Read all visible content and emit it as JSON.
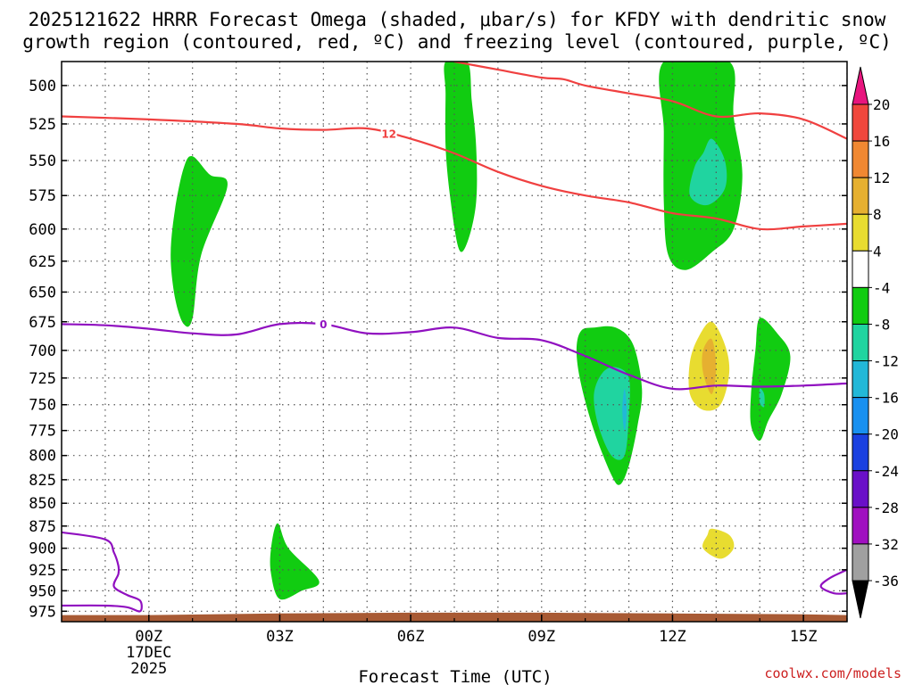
{
  "title_line1": "2025121622 HRRR Forecast Omega (shaded, μbar/s) for KFDY with dendritic snow",
  "title_line2": "growth region (contoured, red, ºC) and freezing level (contoured, purple, ºC)",
  "credit": "coolwx.com/models",
  "chart_data": {
    "type": "time-height contour",
    "title": "2025121622 HRRR Forecast Omega (shaded, μbar/s) for KFDY with dendritic snow growth region (contoured, red, ºC) and freezing level (contoured, purple, ºC)",
    "xlabel": "Forecast Time (UTC)",
    "ylabel": "Pressure (hPa)",
    "xlim_hours_from_00Z": [
      -2,
      16
    ],
    "ylim_hpa": [
      988,
      485
    ],
    "x_ticks": [
      {
        "hour": 0,
        "label": "00Z",
        "sub1": "17DEC",
        "sub2": "2025"
      },
      {
        "hour": 3,
        "label": "03Z"
      },
      {
        "hour": 6,
        "label": "06Z"
      },
      {
        "hour": 9,
        "label": "09Z"
      },
      {
        "hour": 12,
        "label": "12Z"
      },
      {
        "hour": 15,
        "label": "15Z"
      }
    ],
    "y_ticks": [
      500,
      525,
      550,
      575,
      600,
      625,
      650,
      675,
      700,
      725,
      750,
      775,
      800,
      825,
      850,
      875,
      900,
      925,
      950,
      975
    ],
    "colorbar": {
      "units": "μbar/s",
      "levels": [
        20,
        16,
        12,
        8,
        4,
        -4,
        -8,
        -12,
        -16,
        -20,
        -24,
        -28,
        -32,
        -36
      ],
      "colors": [
        "#e8157e",
        "#f0473c",
        "#f08832",
        "#e6b030",
        "#e8dc30",
        "#ffffff",
        "#11cc11",
        "#20d4a0",
        "#22b8d8",
        "#1890f0",
        "#1a40e0",
        "#6a10c8",
        "#a010c0",
        "#a0a0a0",
        "#000000"
      ]
    },
    "contours": [
      {
        "name": "dendritic-12C",
        "color": "#f04040",
        "label": "12",
        "points": [
          [
            -2,
            520
          ],
          [
            0,
            522
          ],
          [
            2,
            525
          ],
          [
            3,
            528
          ],
          [
            4,
            529
          ],
          [
            5,
            528
          ],
          [
            6,
            535
          ],
          [
            7,
            545
          ],
          [
            8,
            558
          ],
          [
            9,
            568
          ],
          [
            10,
            575
          ],
          [
            11,
            580
          ],
          [
            12,
            588
          ],
          [
            13,
            592
          ],
          [
            14,
            600
          ],
          [
            15,
            598
          ],
          [
            16,
            596
          ]
        ]
      },
      {
        "name": "dendritic-upper",
        "color": "#f04040",
        "label": "",
        "points": [
          [
            7,
            485
          ],
          [
            8,
            490
          ],
          [
            9,
            495
          ],
          [
            9.5,
            496
          ],
          [
            10,
            500
          ],
          [
            11,
            505
          ],
          [
            12,
            510
          ],
          [
            13,
            520
          ],
          [
            14,
            518
          ],
          [
            15,
            522
          ],
          [
            16,
            535
          ]
        ]
      },
      {
        "name": "freezing-0C",
        "color": "#9010c0",
        "label": "0",
        "points": [
          [
            -2,
            677
          ],
          [
            -1,
            678
          ],
          [
            0,
            681
          ],
          [
            1,
            685
          ],
          [
            2,
            686
          ],
          [
            3,
            677
          ],
          [
            4,
            677
          ],
          [
            5,
            685
          ],
          [
            6,
            684
          ],
          [
            7,
            680
          ],
          [
            8,
            689
          ],
          [
            9,
            691
          ],
          [
            10,
            705
          ],
          [
            11,
            722
          ],
          [
            12,
            735
          ],
          [
            13,
            732
          ],
          [
            14,
            733
          ],
          [
            15,
            732
          ],
          [
            16,
            730
          ]
        ]
      }
    ],
    "shaded_regions": [
      {
        "name": "omega-pos4-a",
        "level": 4,
        "points": [
          [
            -1.3,
            485
          ],
          [
            -0.7,
            485
          ],
          [
            -0.8,
            530
          ],
          [
            -1.0,
            570
          ],
          [
            -1.2,
            530
          ]
        ]
      },
      {
        "name": "omega-neg4-a",
        "level": -4,
        "points": [
          [
            1.0,
            547
          ],
          [
            1.4,
            560
          ],
          [
            1.8,
            568
          ],
          [
            1.2,
            620
          ],
          [
            1.0,
            672
          ],
          [
            0.8,
            677
          ],
          [
            0.6,
            655
          ],
          [
            0.5,
            620
          ],
          [
            0.6,
            585
          ],
          [
            0.8,
            555
          ]
        ]
      },
      {
        "name": "omega-neg4-b",
        "level": -4,
        "points": [
          [
            6.8,
            485
          ],
          [
            7.3,
            485
          ],
          [
            7.4,
            510
          ],
          [
            7.5,
            540
          ],
          [
            7.5,
            580
          ],
          [
            7.3,
            610
          ],
          [
            7.1,
            615
          ],
          [
            6.9,
            575
          ],
          [
            6.8,
            540
          ],
          [
            6.8,
            505
          ]
        ]
      },
      {
        "name": "omega-pos4-b",
        "level": 4,
        "points": [
          [
            10.0,
            555
          ],
          [
            10.2,
            570
          ],
          [
            10.0,
            585
          ],
          [
            9.9,
            570
          ]
        ]
      },
      {
        "name": "omega-neg4-c",
        "level": -4,
        "points": [
          [
            11.8,
            485
          ],
          [
            13.3,
            485
          ],
          [
            13.4,
            520
          ],
          [
            13.6,
            560
          ],
          [
            13.4,
            600
          ],
          [
            12.9,
            618
          ],
          [
            12.3,
            632
          ],
          [
            11.9,
            620
          ],
          [
            11.8,
            580
          ],
          [
            11.8,
            530
          ]
        ]
      },
      {
        "name": "omega-neg8-c",
        "level": -8,
        "points": [
          [
            12.9,
            535
          ],
          [
            13.2,
            550
          ],
          [
            13.2,
            570
          ],
          [
            12.8,
            582
          ],
          [
            12.4,
            575
          ],
          [
            12.5,
            555
          ],
          [
            12.7,
            545
          ]
        ]
      },
      {
        "name": "omega-neg4-d",
        "level": -4,
        "points": [
          [
            10.2,
            680
          ],
          [
            10.7,
            680
          ],
          [
            11.1,
            695
          ],
          [
            11.3,
            735
          ],
          [
            11.2,
            770
          ],
          [
            11.0,
            810
          ],
          [
            10.8,
            830
          ],
          [
            10.6,
            820
          ],
          [
            10.2,
            775
          ],
          [
            9.9,
            730
          ],
          [
            9.8,
            700
          ],
          [
            9.9,
            683
          ]
        ]
      },
      {
        "name": "omega-neg8-d",
        "level": -8,
        "points": [
          [
            10.7,
            715
          ],
          [
            11.0,
            725
          ],
          [
            11.0,
            760
          ],
          [
            10.9,
            800
          ],
          [
            10.6,
            800
          ],
          [
            10.3,
            770
          ],
          [
            10.2,
            740
          ],
          [
            10.4,
            720
          ]
        ]
      },
      {
        "name": "omega-neg12-d",
        "level": -12,
        "points": [
          [
            10.9,
            735
          ],
          [
            10.95,
            755
          ],
          [
            10.9,
            775
          ],
          [
            10.85,
            755
          ]
        ]
      },
      {
        "name": "omega-pos4-e",
        "level": 4,
        "points": [
          [
            12.8,
            650
          ],
          [
            13.2,
            660
          ],
          [
            13.5,
            680
          ],
          [
            13.5,
            730
          ],
          [
            13.3,
            770
          ],
          [
            12.7,
            775
          ],
          [
            12.0,
            775
          ],
          [
            12.0,
            730
          ],
          [
            12.1,
            700
          ],
          [
            12.4,
            670
          ]
        ]
      },
      {
        "name": "omega-pos8-e",
        "level": 8,
        "points": [
          [
            12.9,
            675
          ],
          [
            13.2,
            695
          ],
          [
            13.3,
            720
          ],
          [
            13.1,
            750
          ],
          [
            12.7,
            755
          ],
          [
            12.4,
            740
          ],
          [
            12.4,
            710
          ],
          [
            12.6,
            688
          ]
        ]
      },
      {
        "name": "omega-pos12-e",
        "level": 12,
        "points": [
          [
            12.9,
            690
          ],
          [
            13.0,
            715
          ],
          [
            12.9,
            740
          ],
          [
            12.7,
            720
          ],
          [
            12.7,
            700
          ]
        ]
      },
      {
        "name": "omega-neg4-f",
        "level": -4,
        "points": [
          [
            14.0,
            672
          ],
          [
            14.4,
            685
          ],
          [
            14.7,
            705
          ],
          [
            14.5,
            740
          ],
          [
            14.2,
            765
          ],
          [
            14.0,
            785
          ],
          [
            13.8,
            770
          ],
          [
            13.8,
            740
          ],
          [
            13.9,
            700
          ]
        ]
      },
      {
        "name": "omega-neg8-f",
        "level": -8,
        "points": [
          [
            14.0,
            735
          ],
          [
            14.1,
            740
          ],
          [
            14.1,
            752
          ],
          [
            14.0,
            748
          ]
        ]
      },
      {
        "name": "omega-pos4-g",
        "level": 4,
        "points": [
          [
            15.1,
            797
          ],
          [
            15.2,
            810
          ],
          [
            15.1,
            825
          ],
          [
            14.9,
            815
          ]
        ]
      },
      {
        "name": "omega-pos4-h",
        "level": 4,
        "points": [
          [
            14.2,
            835
          ],
          [
            14.6,
            837
          ],
          [
            14.7,
            860
          ],
          [
            14.6,
            900
          ],
          [
            14.4,
            925
          ],
          [
            14.0,
            945
          ],
          [
            13.3,
            925
          ],
          [
            12.7,
            900
          ],
          [
            12.5,
            875
          ],
          [
            12.8,
            858
          ],
          [
            13.3,
            845
          ]
        ]
      },
      {
        "name": "omega-pos8-h",
        "level": 8,
        "points": [
          [
            12.9,
            878
          ],
          [
            13.3,
            885
          ],
          [
            13.4,
            900
          ],
          [
            13.1,
            912
          ],
          [
            12.7,
            900
          ],
          [
            12.8,
            885
          ]
        ]
      },
      {
        "name": "omega-neg4-i",
        "level": -4,
        "points": [
          [
            2.95,
            872
          ],
          [
            3.2,
            900
          ],
          [
            3.9,
            938
          ],
          [
            3.5,
            950
          ],
          [
            3.0,
            960
          ],
          [
            2.8,
            930
          ],
          [
            2.8,
            900
          ]
        ]
      }
    ],
    "freezing_low_contours": [
      {
        "name": "freezing-low-left",
        "color": "#9010c0",
        "points": [
          [
            -2,
            882
          ],
          [
            -1.0,
            890
          ],
          [
            -0.8,
            905
          ],
          [
            -0.7,
            920
          ],
          [
            -0.7,
            930
          ],
          [
            -0.8,
            945
          ],
          [
            -0.5,
            955
          ],
          [
            -0.2,
            962
          ],
          [
            -0.2,
            975
          ],
          [
            -0.5,
            970
          ],
          [
            -1.0,
            968
          ],
          [
            -2,
            968
          ]
        ]
      },
      {
        "name": "freezing-low-right",
        "color": "#9010c0",
        "points": [
          [
            16,
            925
          ],
          [
            15.6,
            935
          ],
          [
            15.4,
            945
          ],
          [
            15.7,
            953
          ],
          [
            16,
            953
          ]
        ]
      }
    ],
    "terrain": {
      "name": "terrain-ground",
      "color": "#a85a34",
      "surface_hpa": [
        [
          -2,
          982
        ],
        [
          0,
          982
        ],
        [
          3,
          980
        ],
        [
          6,
          979
        ],
        [
          9,
          979
        ],
        [
          12,
          980
        ],
        [
          15,
          981
        ],
        [
          16,
          982
        ]
      ]
    }
  }
}
